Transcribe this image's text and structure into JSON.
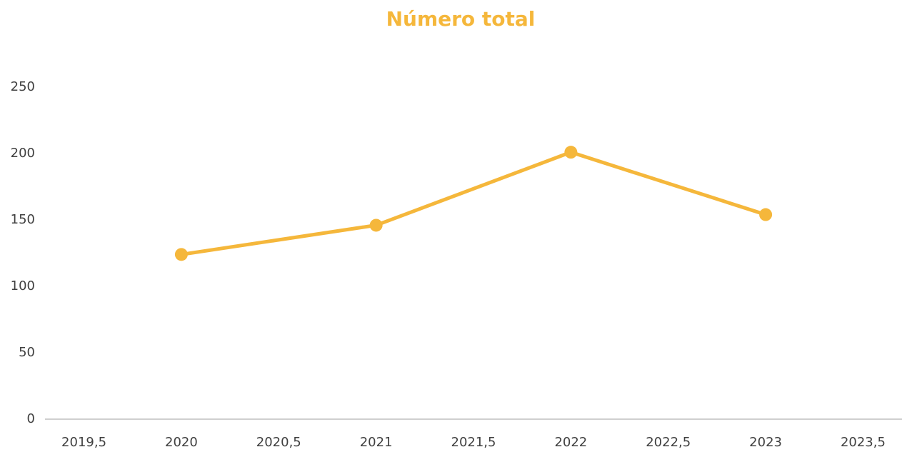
{
  "chart_data": {
    "type": "line",
    "title": "Número total",
    "x": [
      2020,
      2021,
      2022,
      2023
    ],
    "values": [
      124,
      146,
      201,
      154
    ],
    "color": "#f5b73b",
    "xlim": [
      2019.3,
      2023.7
    ],
    "xticks": [
      {
        "value": 2019.5,
        "label": "2019,5"
      },
      2020,
      {
        "value": 2020.5,
        "label": "2020,5"
      },
      2021,
      {
        "value": 2021.5,
        "label": "2021,5"
      },
      2022,
      {
        "value": 2022.5,
        "label": "2022,5"
      },
      2023,
      {
        "value": 2023.5,
        "label": "2023,5"
      }
    ],
    "ylim": [
      0,
      250
    ],
    "yticks": [
      0,
      50,
      100,
      150,
      200,
      250
    ],
    "grid": false
  }
}
